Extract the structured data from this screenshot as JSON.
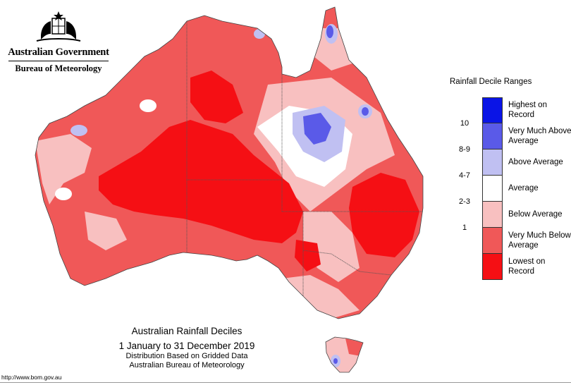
{
  "header": {
    "government": "Australian Government",
    "bureau": "Bureau of Meteorology",
    "logo_icon": "coat-of-arms-icon"
  },
  "legend": {
    "title": "Rainfall Decile Ranges",
    "items": [
      {
        "code": "",
        "label": "Highest on Record",
        "color": "#0a14e6"
      },
      {
        "code": "10",
        "label": "Very Much Above Average",
        "color": "#5a5ae8"
      },
      {
        "code": "8-9",
        "label": "Above Average",
        "color": "#c0c0f2"
      },
      {
        "code": "4-7",
        "label": "Average",
        "color": "#ffffff"
      },
      {
        "code": "2-3",
        "label": "Below Average",
        "color": "#f8c0c0"
      },
      {
        "code": "1",
        "label": "Very Much Below Average",
        "color": "#f05858"
      },
      {
        "code": "",
        "label": "Lowest on Record",
        "color": "#f50f14"
      }
    ]
  },
  "map": {
    "title": "Australian Rainfall Deciles",
    "period": "1 January to 31 December 2019",
    "note1": "Distribution Based on Gridded Data",
    "note2": "Australian Bureau of Meteorology"
  },
  "footer": {
    "url": "http://www.bom.gov.au"
  },
  "colors": {
    "highest": "#0a14e6",
    "very_much_above": "#5a5ae8",
    "above": "#c0c0f2",
    "average": "#ffffff",
    "below": "#f8c0c0",
    "very_much_below": "#f05858",
    "lowest": "#f50f14",
    "state_border": "#555555"
  }
}
